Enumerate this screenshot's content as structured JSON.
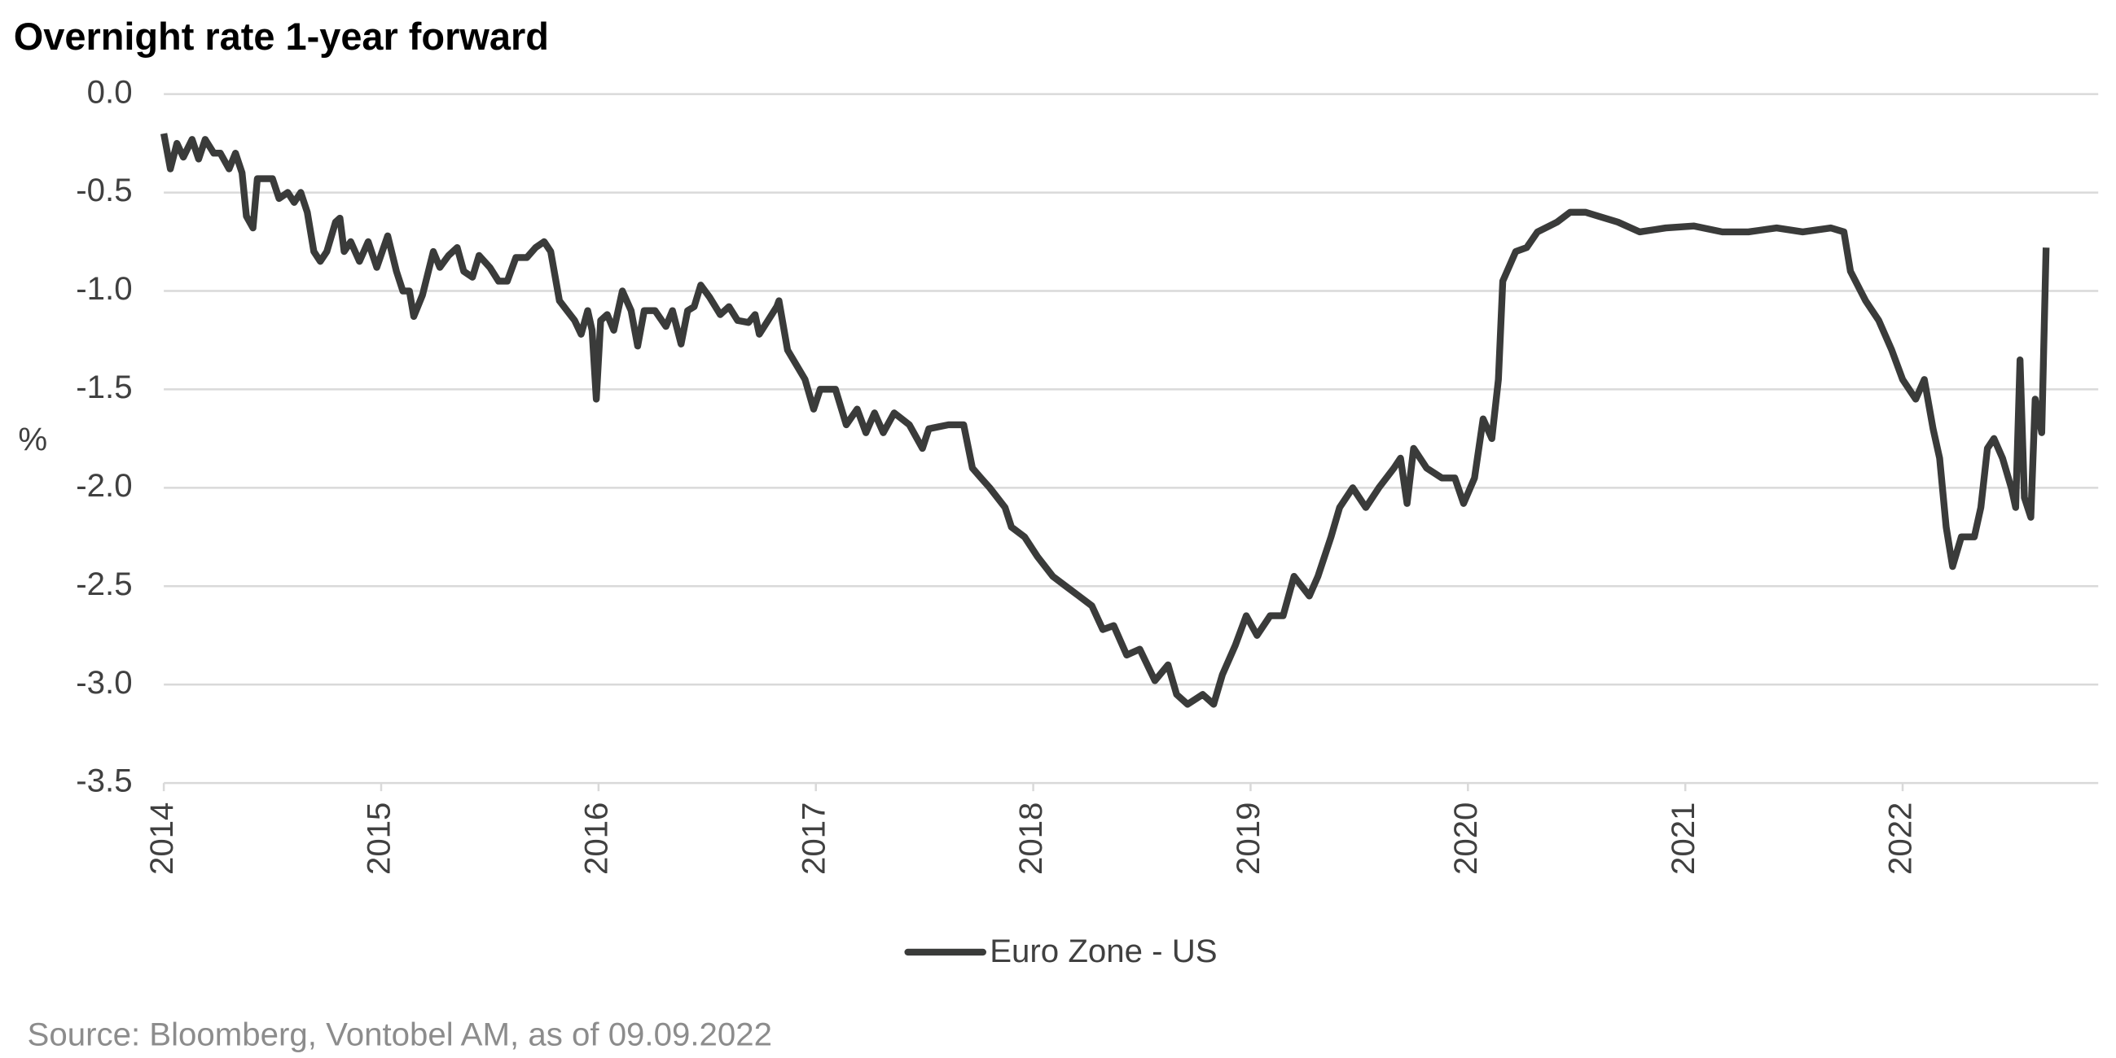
{
  "chart_data": {
    "type": "line",
    "title": "Overnight rate 1-year forward",
    "y_label": "%",
    "source": "Source: Bloomberg, Vontobel AM, as of 09.09.2022",
    "x": [
      2014.0,
      2014.03,
      2014.06,
      2014.09,
      2014.13,
      2014.16,
      2014.19,
      2014.23,
      2014.26,
      2014.3,
      2014.33,
      2014.36,
      2014.38,
      2014.41,
      2014.43,
      2014.47,
      2014.5,
      2014.53,
      2014.57,
      2014.6,
      2014.63,
      2014.66,
      2014.69,
      2014.72,
      2014.75,
      2014.79,
      2014.81,
      2014.83,
      2014.86,
      2014.9,
      2014.94,
      2014.98,
      2015.03,
      2015.07,
      2015.1,
      2015.13,
      2015.15,
      2015.19,
      2015.24,
      2015.27,
      2015.31,
      2015.35,
      2015.38,
      2015.42,
      2015.45,
      2015.5,
      2015.54,
      2015.58,
      2015.62,
      2015.67,
      2015.71,
      2015.75,
      2015.78,
      2015.82,
      2015.89,
      2015.92,
      2015.95,
      2015.97,
      2015.99,
      2016.01,
      2016.04,
      2016.07,
      2016.11,
      2016.15,
      2016.18,
      2016.21,
      2016.26,
      2016.31,
      2016.34,
      2016.38,
      2016.41,
      2016.44,
      2016.47,
      2016.51,
      2016.56,
      2016.6,
      2016.64,
      2016.69,
      2016.72,
      2016.74,
      2016.78,
      2016.82,
      2016.83,
      2016.87,
      2016.95,
      2016.99,
      2017.02,
      2017.09,
      2017.14,
      2017.19,
      2017.23,
      2017.27,
      2017.31,
      2017.36,
      2017.43,
      2017.49,
      2017.52,
      2017.61,
      2017.68,
      2017.72,
      2017.76,
      2017.8,
      2017.87,
      2017.9,
      2017.96,
      2018.02,
      2018.09,
      2018.15,
      2018.21,
      2018.27,
      2018.32,
      2018.37,
      2018.43,
      2018.49,
      2018.56,
      2018.62,
      2018.66,
      2018.71,
      2018.78,
      2018.83,
      2018.87,
      2018.93,
      2018.98,
      2019.03,
      2019.09,
      2019.15,
      2019.2,
      2019.27,
      2019.31,
      2019.37,
      2019.41,
      2019.47,
      2019.53,
      2019.59,
      2019.66,
      2019.69,
      2019.72,
      2019.75,
      2019.81,
      2019.88,
      2019.94,
      2019.98,
      2020.03,
      2020.07,
      2020.11,
      2020.14,
      2020.16,
      2020.22,
      2020.27,
      2020.32,
      2020.41,
      2020.47,
      2020.54,
      2020.6,
      2020.69,
      2020.79,
      2020.91,
      2021.04,
      2021.17,
      2021.29,
      2021.42,
      2021.54,
      2021.67,
      2021.73,
      2021.76,
      2021.83,
      2021.89,
      2021.95,
      2022.0,
      2022.06,
      2022.1,
      2022.14,
      2022.17,
      2022.2,
      2022.23,
      2022.27,
      2022.33,
      2022.36,
      2022.39,
      2022.42,
      2022.46,
      2022.5,
      2022.52,
      2022.54,
      2022.56,
      2022.59,
      2022.61,
      2022.64,
      2022.66
    ],
    "series": [
      {
        "name": "Euro Zone - US",
        "color": "#3a3b3a",
        "values": [
          -0.2,
          -0.38,
          -0.25,
          -0.32,
          -0.23,
          -0.33,
          -0.23,
          -0.3,
          -0.3,
          -0.38,
          -0.3,
          -0.4,
          -0.62,
          -0.68,
          -0.43,
          -0.43,
          -0.43,
          -0.53,
          -0.5,
          -0.55,
          -0.5,
          -0.6,
          -0.8,
          -0.85,
          -0.8,
          -0.65,
          -0.63,
          -0.8,
          -0.75,
          -0.85,
          -0.75,
          -0.88,
          -0.72,
          -0.9,
          -1.0,
          -1.0,
          -1.13,
          -1.02,
          -0.8,
          -0.88,
          -0.82,
          -0.78,
          -0.9,
          -0.93,
          -0.82,
          -0.88,
          -0.95,
          -0.95,
          -0.83,
          -0.83,
          -0.78,
          -0.75,
          -0.8,
          -1.05,
          -1.15,
          -1.22,
          -1.1,
          -1.2,
          -1.55,
          -1.15,
          -1.12,
          -1.2,
          -1.0,
          -1.1,
          -1.28,
          -1.1,
          -1.1,
          -1.18,
          -1.1,
          -1.27,
          -1.1,
          -1.08,
          -0.97,
          -1.03,
          -1.12,
          -1.08,
          -1.15,
          -1.16,
          -1.12,
          -1.22,
          -1.15,
          -1.08,
          -1.05,
          -1.3,
          -1.45,
          -1.6,
          -1.5,
          -1.5,
          -1.68,
          -1.6,
          -1.72,
          -1.62,
          -1.72,
          -1.62,
          -1.68,
          -1.8,
          -1.7,
          -1.68,
          -1.68,
          -1.9,
          -1.95,
          -2.0,
          -2.1,
          -2.2,
          -2.25,
          -2.35,
          -2.45,
          -2.5,
          -2.55,
          -2.6,
          -2.72,
          -2.7,
          -2.85,
          -2.82,
          -2.98,
          -2.9,
          -3.05,
          -3.1,
          -3.05,
          -3.1,
          -2.95,
          -2.8,
          -2.65,
          -2.75,
          -2.65,
          -2.65,
          -2.45,
          -2.55,
          -2.45,
          -2.25,
          -2.1,
          -2.0,
          -2.1,
          -2.0,
          -1.9,
          -1.85,
          -2.08,
          -1.8,
          -1.9,
          -1.95,
          -1.95,
          -2.08,
          -1.95,
          -1.65,
          -1.75,
          -1.45,
          -0.95,
          -0.8,
          -0.78,
          -0.7,
          -0.65,
          -0.6,
          -0.6,
          -0.62,
          -0.65,
          -0.7,
          -0.68,
          -0.67,
          -0.7,
          -0.7,
          -0.68,
          -0.7,
          -0.68,
          -0.7,
          -0.9,
          -1.05,
          -1.15,
          -1.3,
          -1.45,
          -1.55,
          -1.45,
          -1.7,
          -1.85,
          -2.2,
          -2.4,
          -2.25,
          -2.25,
          -2.1,
          -1.8,
          -1.75,
          -1.85,
          -2.0,
          -2.1,
          -1.35,
          -2.05,
          -2.15,
          -1.55,
          -1.72,
          -0.78
        ]
      }
    ],
    "xlim": [
      2014,
      2022.9
    ],
    "xticks": [
      2014,
      2015,
      2016,
      2017,
      2018,
      2019,
      2020,
      2021,
      2022
    ],
    "ylim": [
      -3.5,
      0
    ],
    "yticks": [
      {
        "value": 0,
        "label": "0.0"
      },
      {
        "value": -0.5,
        "label": "-0.5"
      },
      {
        "value": -1,
        "label": "-1.0"
      },
      {
        "value": -1.5,
        "label": "-1.5"
      },
      {
        "value": -2,
        "label": "-2.0"
      },
      {
        "value": -2.5,
        "label": "-2.5"
      },
      {
        "value": -3,
        "label": "-3.0"
      },
      {
        "value": -3.5,
        "label": "-3.5"
      }
    ],
    "grid": true,
    "legend": "bottom"
  }
}
